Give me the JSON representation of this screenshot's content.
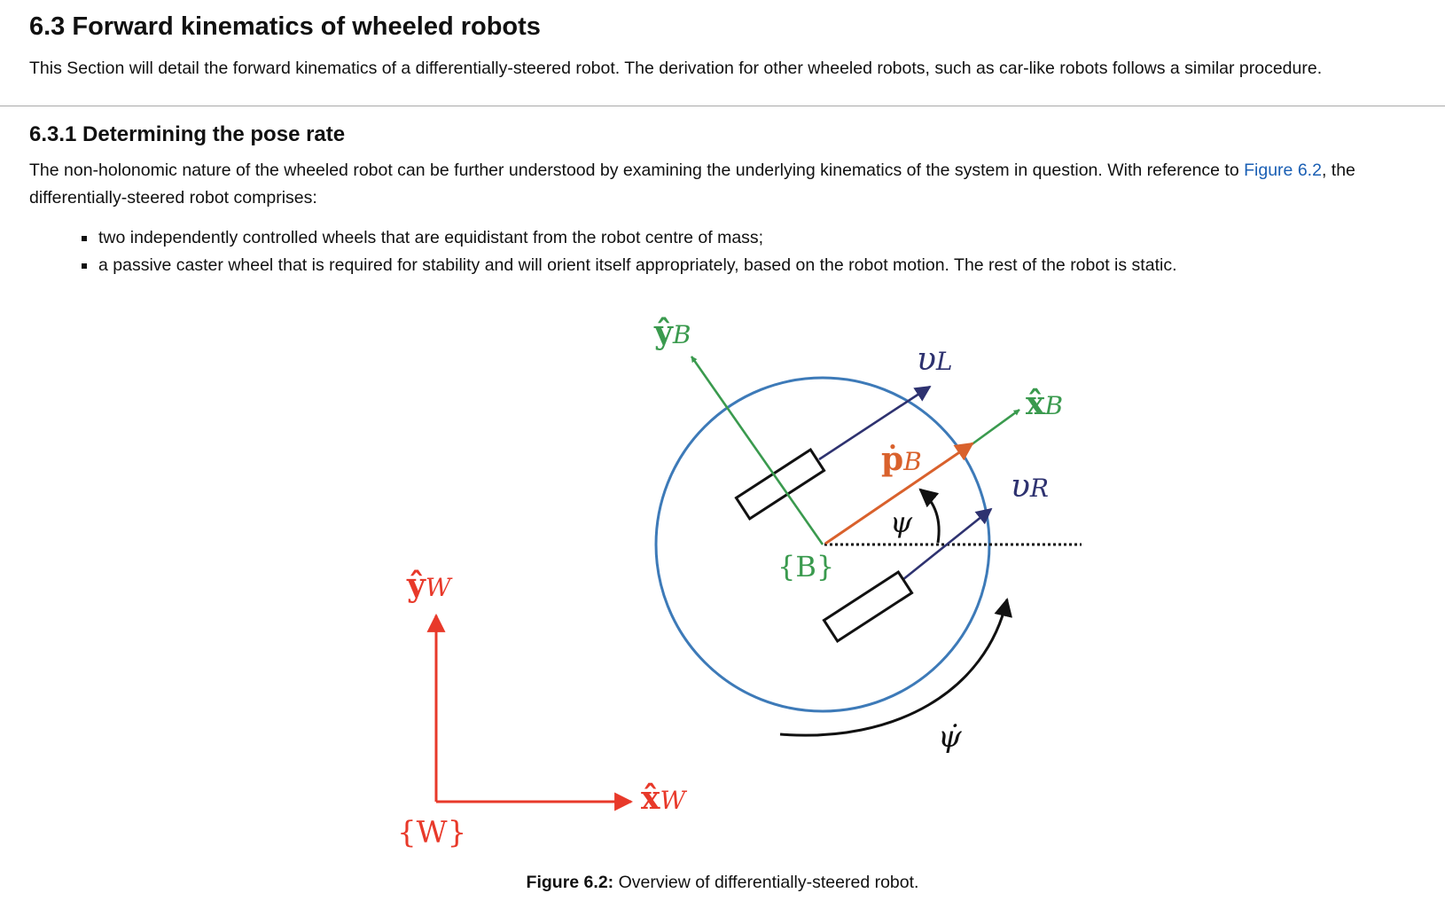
{
  "section": {
    "title": "6.3 Forward kinematics of wheeled robots",
    "intro": "This Section will detail the forward kinematics of a differentially-steered robot. The derivation for other wheeled robots, such as car-like robots follows a similar procedure."
  },
  "subsection": {
    "title": "6.3.1 Determining the pose rate",
    "para_before_link": "The non-holonomic nature of the wheeled robot can be further understood by examining the underlying kinematics of the system in question. With reference to ",
    "link_text": "Figure 6.2",
    "para_after_link": ", the differentially-steered robot comprises:",
    "bullets": [
      "two independently controlled wheels that are equidistant from the robot centre of mass;",
      "a passive caster wheel that is required for stability and will orient itself appropriately, based on the robot motion. The rest of the robot is static."
    ]
  },
  "figure": {
    "labels": {
      "yB_base": "ŷ",
      "yB_sub": "B",
      "vL_base": "υ",
      "vL_sub": "L",
      "xB_base": "x̂",
      "xB_sub": "B",
      "pB_base": "ṗ",
      "pB_sub": "B",
      "vR_base": "υ",
      "vR_sub": "R",
      "psi": "ψ",
      "B_frame": "{B}",
      "yW_base": "ŷ",
      "yW_sub": "W",
      "xW_base": "x̂",
      "xW_sub": "W",
      "W_frame": "{W}",
      "psidot": "ψ̇"
    },
    "colors": {
      "world": "#e8392a",
      "body_axes": "#3a9a4e",
      "wheel_velocity": "#2e3270",
      "pose_rate": "#d9612c",
      "circle": "#3d7ab8",
      "black": "#111111"
    },
    "caption_label": "Figure 6.2:",
    "caption_text": " Overview of differentially-steered robot."
  }
}
